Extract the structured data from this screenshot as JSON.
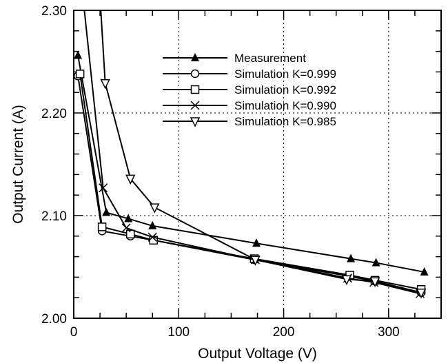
{
  "chart_data": {
    "type": "line",
    "title": "",
    "xlabel": "Output Voltage (V)",
    "ylabel": "Output Current (A)",
    "xlim": [
      0,
      350
    ],
    "ylim": [
      2.0,
      2.3
    ],
    "x_ticks": [
      0,
      100,
      200,
      300
    ],
    "x_tick_labels": [
      "0",
      "100",
      "200",
      "300"
    ],
    "y_ticks": [
      2.0,
      2.1,
      2.2,
      2.3
    ],
    "y_tick_labels": [
      "2.00",
      "2.10",
      "2.20",
      "2.30"
    ],
    "grid": "dotted, major ticks",
    "legend_position": "upper-right",
    "series": [
      {
        "name": "Measurement",
        "marker": "filled-triangle-up",
        "x": [
          4,
          31,
          52,
          75,
          174,
          264,
          288,
          334
        ],
        "y": [
          2.256,
          2.103,
          2.097,
          2.09,
          2.073,
          2.058,
          2.054,
          2.045
        ]
      },
      {
        "name": "Simulation K=0.999",
        "marker": "open-circle",
        "x": [
          4,
          27,
          54,
          76,
          172,
          262,
          287,
          331
        ],
        "y": [
          2.236,
          2.085,
          2.08,
          2.076,
          2.057,
          2.041,
          2.036,
          2.025
        ]
      },
      {
        "name": "Simulation K=0.992",
        "marker": "open-square",
        "x": [
          6,
          27,
          54,
          76,
          172,
          263,
          287,
          331
        ],
        "y": [
          2.238,
          2.089,
          2.082,
          2.076,
          2.058,
          2.042,
          2.037,
          2.028
        ]
      },
      {
        "name": "Simulation K=0.990",
        "marker": "x-cross",
        "x": [
          7,
          28,
          50,
          75,
          173,
          261,
          286,
          330
        ],
        "y": [
          2.33,
          2.127,
          2.088,
          2.079,
          2.057,
          2.039,
          2.035,
          2.024
        ]
      },
      {
        "name": "Simulation K=0.985",
        "marker": "open-triangle-down",
        "x": [
          24,
          30,
          54,
          77,
          173,
          260,
          287,
          331
        ],
        "y": [
          2.33,
          2.229,
          2.136,
          2.108,
          2.057,
          2.038,
          2.036,
          2.025
        ]
      }
    ]
  }
}
